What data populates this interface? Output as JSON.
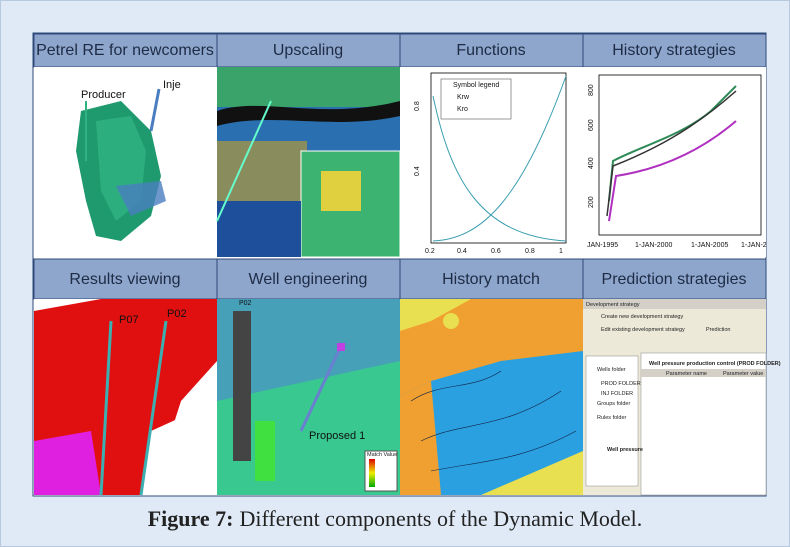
{
  "figure": {
    "panels": [
      {
        "title": "Petrel RE for newcomers",
        "labels": [
          "Producer",
          "Inje"
        ]
      },
      {
        "title": "Upscaling"
      },
      {
        "title": "Functions",
        "labels": [
          "Symbol legend",
          "Krw",
          "Kro",
          "0.8",
          "0.4",
          "0.2",
          "0.4",
          "0.6",
          "0.8",
          "1"
        ]
      },
      {
        "title": "History strategies",
        "labels": [
          "800",
          "600",
          "400",
          "200",
          "JAN-1995",
          "1-JAN-2000",
          "1-JAN-2005",
          "1-JAN-2"
        ]
      },
      {
        "title": "Results viewing",
        "labels": [
          "P07",
          "P02"
        ]
      },
      {
        "title": "Well engineering",
        "labels": [
          "P02",
          "Proposed 1",
          "Match Value"
        ]
      },
      {
        "title": "History match"
      },
      {
        "title": "Prediction strategies",
        "labels": [
          "Development strategy",
          "Create new development strategy",
          "Edit existing development strategy",
          "Prediction",
          "Well pressure production control (PROD FOLDER)",
          "Parameter name",
          "Parameter value",
          "Wells folder",
          "PROD FOLDER",
          "INJ FOLDER",
          "Groups folder",
          "Rules folder",
          "Well pressure"
        ]
      }
    ],
    "caption": {
      "label": "Figure 7:",
      "text": "Different components of the Dynamic Model."
    }
  }
}
